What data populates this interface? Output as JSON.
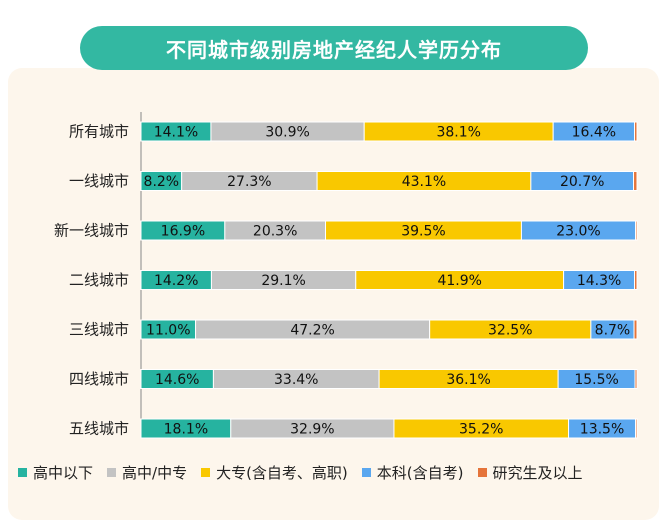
{
  "chart_data": {
    "type": "bar",
    "orientation": "horizontal",
    "stacked": "percent",
    "title": "不同城市级别房地产经纪人学历分布",
    "categories": [
      "所有城市",
      "一线城市",
      "新一线城市",
      "二线城市",
      "三线城市",
      "四线城市",
      "五线城市"
    ],
    "series": [
      {
        "name": "高中以下",
        "color": "#26b3a0",
        "values": [
          14.1,
          8.2,
          16.9,
          14.2,
          11.0,
          14.6,
          18.1
        ]
      },
      {
        "name": "高中/中专",
        "color": "#c3c3c3",
        "values": [
          30.9,
          27.3,
          20.3,
          29.1,
          47.2,
          33.4,
          32.9
        ]
      },
      {
        "name": "大专(含自考、高职)",
        "color": "#f9c800",
        "values": [
          38.1,
          43.1,
          39.5,
          41.9,
          32.5,
          36.1,
          35.2
        ]
      },
      {
        "name": "本科(含自考)",
        "color": "#5aa7ef",
        "values": [
          16.4,
          20.7,
          23.0,
          14.3,
          8.7,
          15.5,
          13.5
        ]
      },
      {
        "name": "研究生及以上",
        "color": "#e5743a",
        "values": [
          0.5,
          0.7,
          0.3,
          0.5,
          0.6,
          0.4,
          0.3
        ]
      }
    ],
    "data_labels": [
      [
        "14.1%",
        "8.2%",
        "16.9%",
        "14.2%",
        "11.0%",
        "14.6%",
        "18.1%"
      ],
      [
        "30.9%",
        "27.3%",
        "20.3%",
        "29.1%",
        "47.2%",
        "33.4%",
        "32.9%"
      ],
      [
        "38.1%",
        "43.1%",
        "39.5%",
        "41.9%",
        "32.5%",
        "36.1%",
        "35.2%"
      ],
      [
        "16.4%",
        "20.7%",
        "23.0%",
        "14.3%",
        "8.7%",
        "15.5%",
        "13.5%"
      ],
      [
        "",
        "",
        "",
        "",
        "",
        "",
        ""
      ]
    ],
    "xlim": [
      0,
      100
    ],
    "grid": false,
    "legend_position": "bottom"
  },
  "colors": {
    "title_background": "#33b8a2",
    "panel_background": "#fdf6ec"
  }
}
